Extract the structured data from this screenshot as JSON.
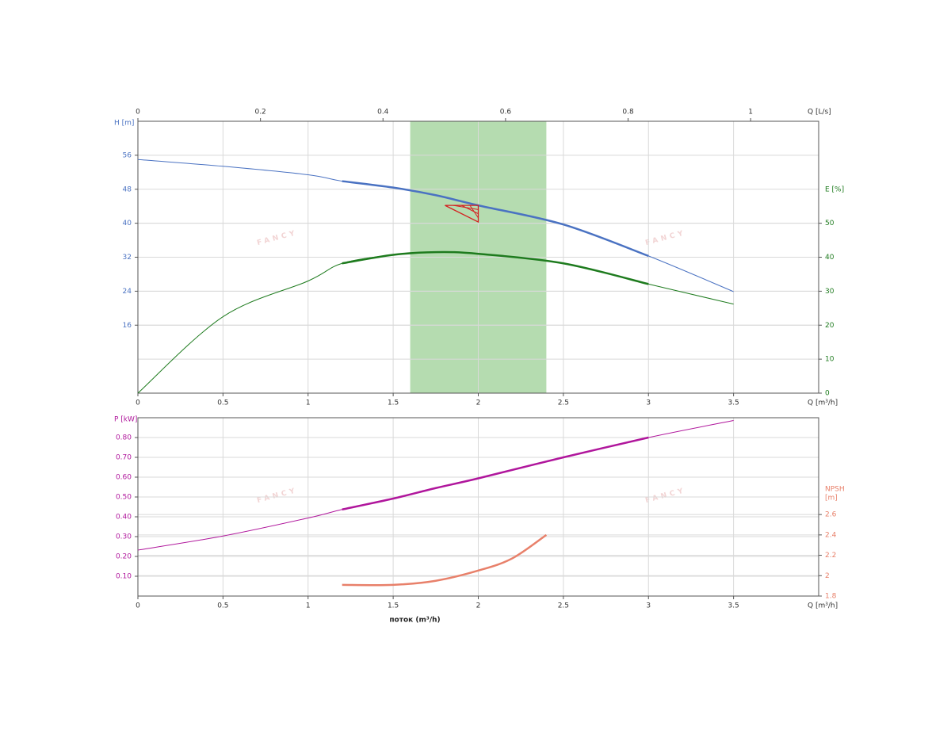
{
  "watermark": "FANCY",
  "chart_data": [
    {
      "type": "line",
      "x_label": "Q [m³/h]",
      "x2_label": "Q [L/s]",
      "y_label": "H [m]",
      "y2_label": "E [%]",
      "xlim": [
        0,
        4
      ],
      "xticks": [
        0,
        0.5,
        1,
        1.5,
        2,
        2.5,
        3,
        3.5
      ],
      "x2lim": [
        0,
        1.111
      ],
      "x2ticks": [
        0,
        0.2,
        0.4,
        0.6,
        0.8,
        1
      ],
      "ylim": [
        0,
        64
      ],
      "yticks": [
        16,
        24,
        32,
        40,
        48,
        56
      ],
      "y2lim": [
        0,
        80
      ],
      "y2ticks": [
        0,
        10,
        20,
        30,
        40,
        50
      ],
      "grid": true,
      "highlight_range": [
        1.6,
        2.4
      ],
      "highlight_color": "#b5dcb0",
      "thick_range": [
        1.2,
        3
      ],
      "duty_point": {
        "x": 2,
        "y": 44.2,
        "color": "#d42020"
      },
      "x": [
        0,
        0.5,
        1,
        1.2,
        1.5,
        1.75,
        2,
        2.5,
        3,
        3.5
      ],
      "series": [
        {
          "color": "#4a72c2",
          "values": [
            55,
            53.4,
            51.4,
            49.9,
            48.4,
            46.6,
            44.2,
            39.7,
            32.3,
            23.9
          ]
        },
        {
          "color": "#1e7b1e",
          "axis": "y2",
          "values": [
            0,
            22.5,
            33,
            38.2,
            40.7,
            41.5,
            41,
            38.2,
            32.1,
            26.2
          ]
        }
      ]
    },
    {
      "type": "line",
      "x_label": "Q [m³/h]",
      "x_title": "поток (m³/h)",
      "y_label": "P [kW]",
      "y2_label": [
        "NPSH",
        "[m]"
      ],
      "xlim": [
        0,
        4
      ],
      "xticks": [
        0,
        0.5,
        1,
        1.5,
        2,
        2.5,
        3,
        3.5
      ],
      "ylim": [
        0,
        0.9
      ],
      "yticks": [
        {
          "value": 0.1,
          "label": "0.10"
        },
        {
          "value": 0.2,
          "label": "0.20"
        },
        {
          "value": 0.3,
          "label": "0.30"
        },
        {
          "value": 0.4,
          "label": "0.40"
        },
        {
          "value": 0.5,
          "label": "0.50"
        },
        {
          "value": 0.6,
          "label": "0.60"
        },
        {
          "value": 0.7,
          "label": "0.70"
        },
        {
          "value": 0.8,
          "label": "0.80"
        }
      ],
      "y2lim": [
        1.8,
        3.55
      ],
      "y2ticks": [
        1.8,
        2,
        2.2,
        2.4,
        2.6
      ],
      "grid": true,
      "thick_range": [
        1.2,
        3
      ],
      "x": [
        0,
        0.5,
        1,
        1.2,
        1.5,
        1.75,
        2,
        2.5,
        3,
        3.5
      ],
      "series": [
        {
          "color": "#b0169c",
          "values": [
            0.232,
            0.303,
            0.394,
            0.437,
            0.492,
            0.545,
            0.594,
            0.7,
            0.8,
            0.886
          ]
        },
        {
          "color": "#e8806a",
          "axis": "y2",
          "x": [
            1.2,
            1.5,
            1.75,
            2,
            2.2,
            2.4
          ],
          "values": [
            1.91,
            1.91,
            1.95,
            2.05,
            2.17,
            2.4
          ]
        }
      ]
    }
  ]
}
